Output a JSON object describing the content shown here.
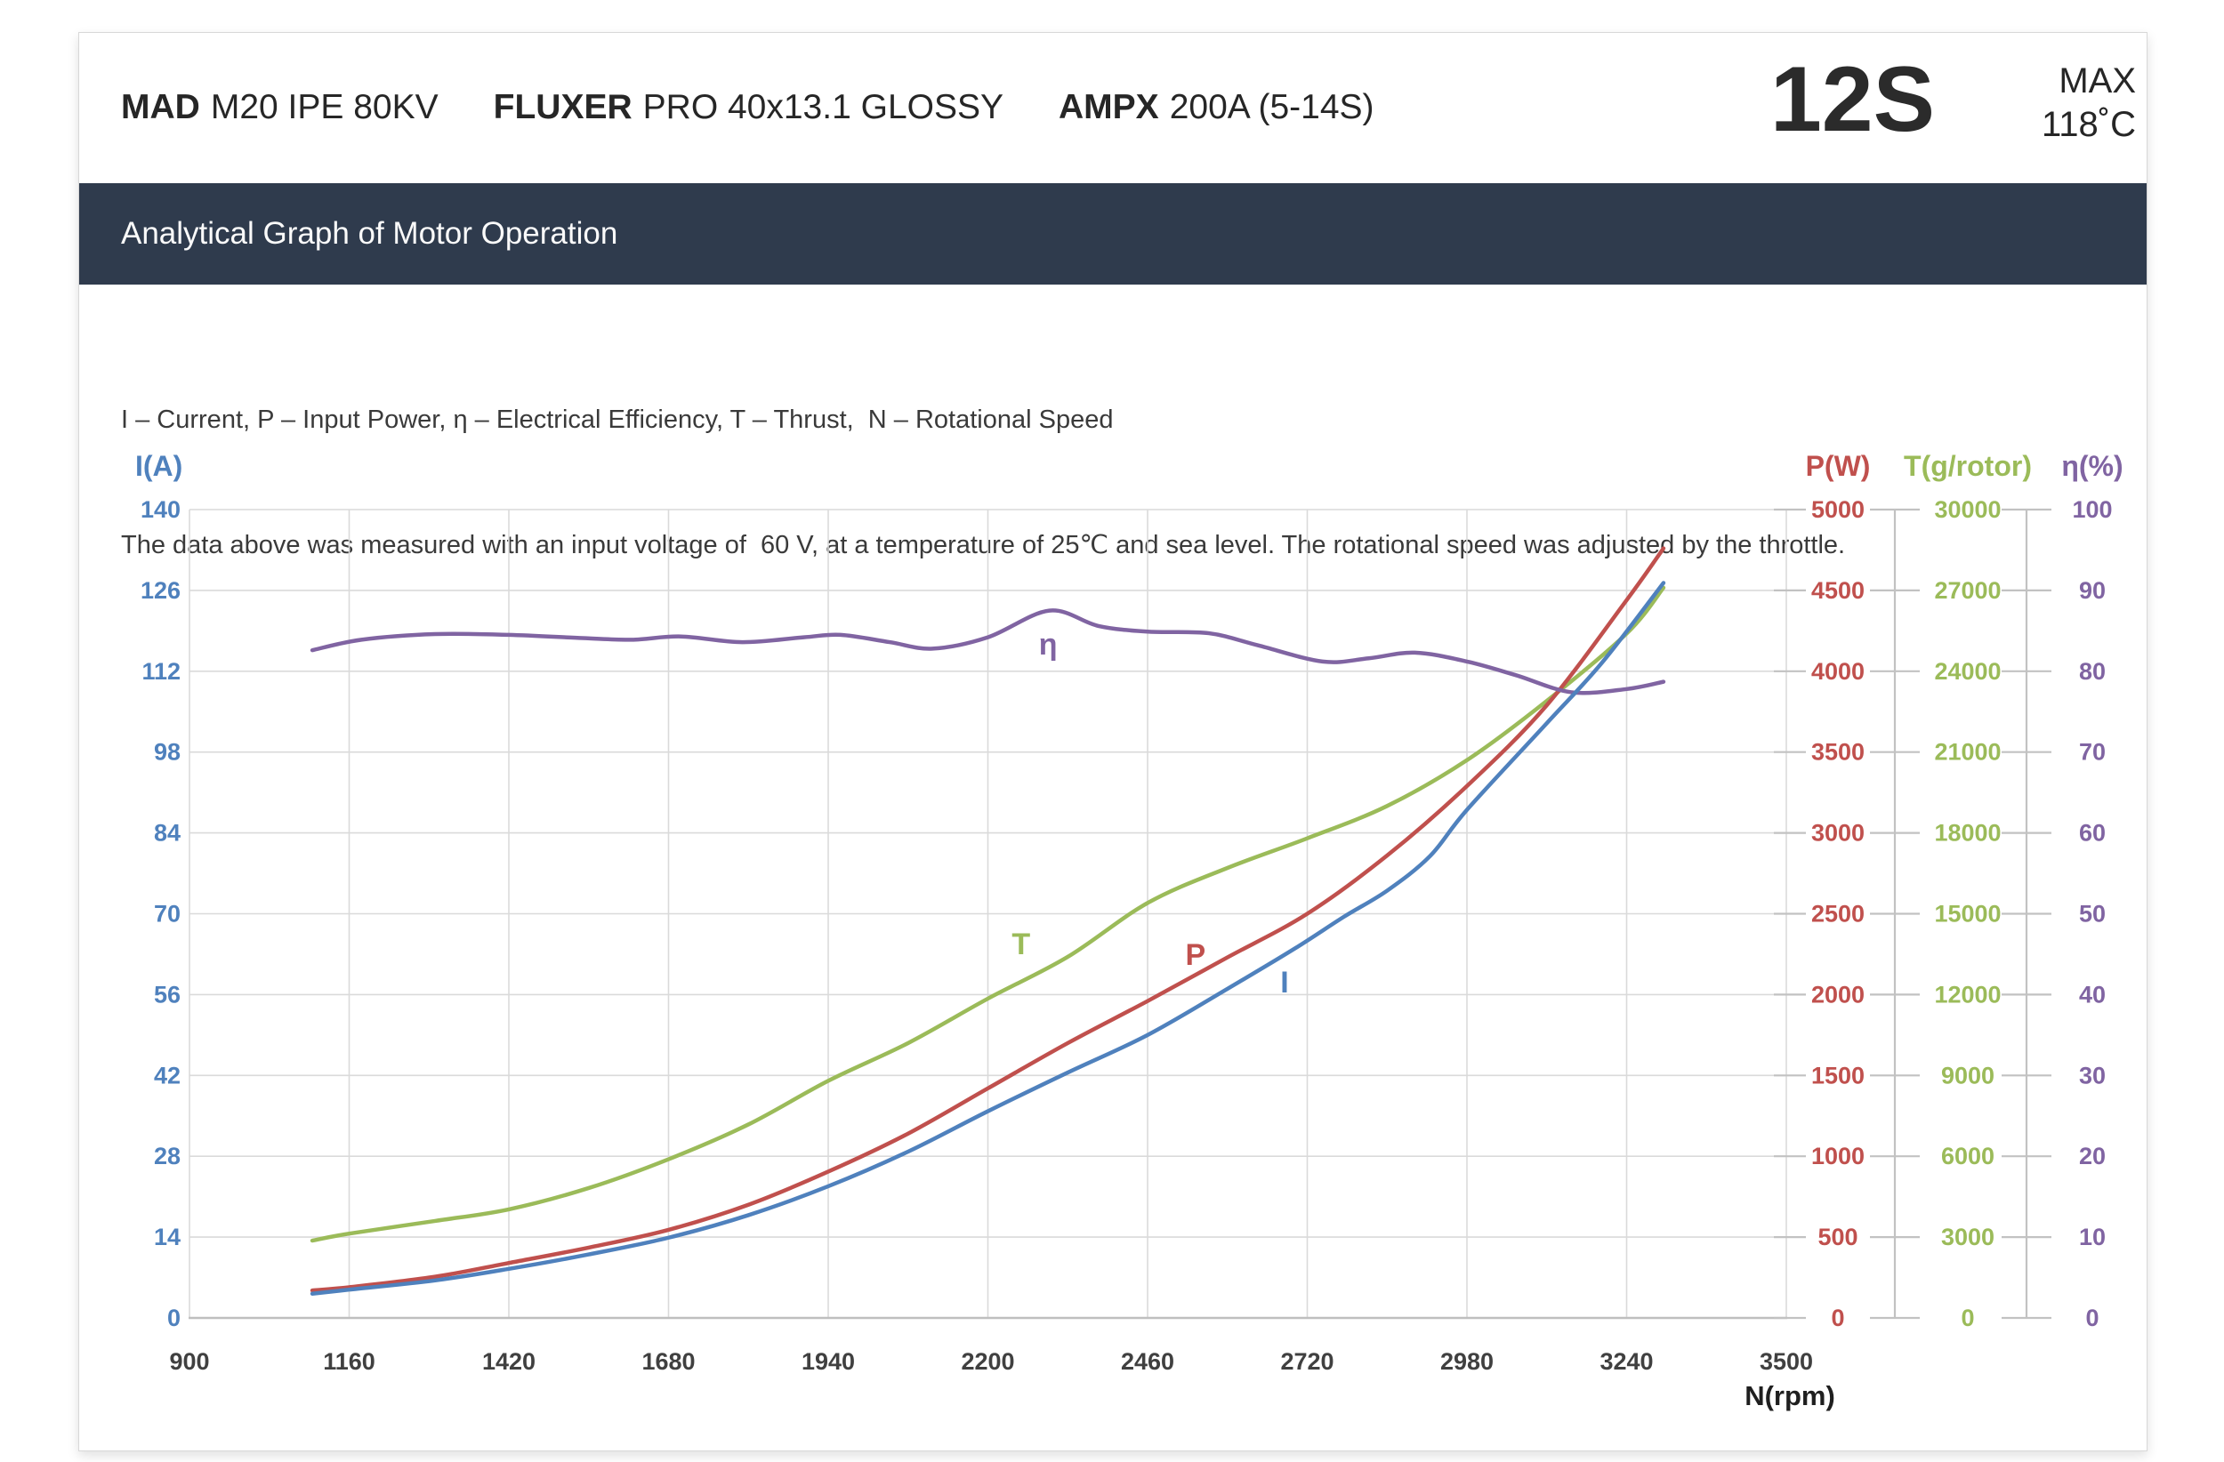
{
  "header": {
    "products": [
      {
        "brand": "MAD",
        "model": "M20 IPE 80KV"
      },
      {
        "brand": "FLUXER",
        "model": "PRO 40x13.1 GLOSSY"
      },
      {
        "brand": "AMPX",
        "model": "200A (5-14S)"
      }
    ],
    "battery": "12S",
    "max_label": "MAX",
    "max_temp": "118˚C"
  },
  "section_title": "Analytical Graph of Motor Operation",
  "description": {
    "line1": "I – Current, P – Input Power, η – Electrical Efficiency, T – Thrust,  N – Rotational Speed",
    "line2": "The data above was measured with an input voltage of  60 V, at a temperature of 25℃ and sea level. The rotational speed was adjusted by the throttle."
  },
  "colors": {
    "titlebar_bg": "#2F3B4D",
    "grid": "#DADADA",
    "axis_line": "#C2C2C2",
    "x_tick_text": "#404040"
  },
  "chart_data": {
    "type": "line",
    "title": "Analytical Graph of Motor Operation",
    "grid": true,
    "x_axis": {
      "label": "N(rpm)",
      "min": 900,
      "max": 3500,
      "ticks": [
        900,
        1160,
        1420,
        1680,
        1940,
        2200,
        2460,
        2720,
        2980,
        3240,
        3500
      ]
    },
    "y_axes": [
      {
        "id": "i",
        "title": "I(A)",
        "color": "#4F81BD",
        "min": 0,
        "max": 140,
        "ticks": [
          0,
          14,
          28,
          42,
          56,
          70,
          84,
          98,
          112,
          126,
          140
        ]
      },
      {
        "id": "p",
        "title": "P(W)",
        "color": "#C0504D",
        "min": 0,
        "max": 5000,
        "ticks": [
          0,
          500,
          1000,
          1500,
          2000,
          2500,
          3000,
          3500,
          4000,
          4500,
          5000
        ]
      },
      {
        "id": "t",
        "title": "T(g/rotor)",
        "color": "#9BBB59",
        "min": 0,
        "max": 30000,
        "ticks": [
          0,
          3000,
          6000,
          9000,
          12000,
          15000,
          18000,
          21000,
          24000,
          27000,
          30000
        ]
      },
      {
        "id": "eta",
        "title": "η(%)",
        "color": "#8064A2",
        "min": 0,
        "max": 100,
        "ticks": [
          0,
          10,
          20,
          30,
          40,
          50,
          60,
          70,
          80,
          90,
          100
        ]
      }
    ],
    "series": [
      {
        "id": "t",
        "name": "Thrust",
        "axis": "t",
        "color": "#9BBB59",
        "label": {
          "text": "T",
          "n": 2254,
          "v": 13900
        },
        "points": [
          [
            1100,
            2870
          ],
          [
            1160,
            3130
          ],
          [
            1300,
            3600
          ],
          [
            1420,
            4030
          ],
          [
            1550,
            4820
          ],
          [
            1680,
            5890
          ],
          [
            1810,
            7180
          ],
          [
            1940,
            8800
          ],
          [
            2070,
            10200
          ],
          [
            2200,
            11850
          ],
          [
            2330,
            13400
          ],
          [
            2460,
            15400
          ],
          [
            2590,
            16700
          ],
          [
            2720,
            17800
          ],
          [
            2850,
            19000
          ],
          [
            2980,
            20700
          ],
          [
            3110,
            22900
          ],
          [
            3240,
            25400
          ],
          [
            3300,
            27100
          ]
        ]
      },
      {
        "id": "p",
        "name": "Input Power",
        "axis": "p",
        "color": "#C0504D",
        "label": {
          "text": "P",
          "n": 2538,
          "v": 2250
        },
        "points": [
          [
            1100,
            170
          ],
          [
            1160,
            190
          ],
          [
            1300,
            255
          ],
          [
            1420,
            340
          ],
          [
            1550,
            435
          ],
          [
            1680,
            545
          ],
          [
            1810,
            700
          ],
          [
            1940,
            905
          ],
          [
            2070,
            1140
          ],
          [
            2200,
            1420
          ],
          [
            2330,
            1700
          ],
          [
            2460,
            1960
          ],
          [
            2590,
            2230
          ],
          [
            2720,
            2500
          ],
          [
            2850,
            2860
          ],
          [
            2980,
            3290
          ],
          [
            3110,
            3790
          ],
          [
            3240,
            4440
          ],
          [
            3300,
            4760
          ]
        ]
      },
      {
        "id": "eta",
        "name": "Electrical Efficiency",
        "axis": "eta",
        "color": "#8064A2",
        "label": {
          "text": "η",
          "n": 2298,
          "v": 83.4
        },
        "points": [
          [
            1100,
            82.6
          ],
          [
            1180,
            83.9
          ],
          [
            1300,
            84.6
          ],
          [
            1420,
            84.5
          ],
          [
            1540,
            84.1
          ],
          [
            1620,
            83.9
          ],
          [
            1700,
            84.3
          ],
          [
            1800,
            83.6
          ],
          [
            1900,
            84.2
          ],
          [
            1960,
            84.5
          ],
          [
            2040,
            83.6
          ],
          [
            2110,
            82.8
          ],
          [
            2200,
            84.2
          ],
          [
            2300,
            87.5
          ],
          [
            2380,
            85.6
          ],
          [
            2460,
            84.9
          ],
          [
            2560,
            84.7
          ],
          [
            2640,
            83.2
          ],
          [
            2745,
            81.2
          ],
          [
            2820,
            81.6
          ],
          [
            2895,
            82.3
          ],
          [
            2980,
            81.2
          ],
          [
            3060,
            79.5
          ],
          [
            3150,
            77.4
          ],
          [
            3240,
            77.8
          ],
          [
            3300,
            78.7
          ]
        ]
      },
      {
        "id": "i",
        "name": "Current",
        "axis": "i",
        "color": "#4F81BD",
        "label": {
          "text": "I",
          "n": 2683,
          "v": 58.2
        },
        "points": [
          [
            1100,
            4.2
          ],
          [
            1160,
            4.9
          ],
          [
            1300,
            6.5
          ],
          [
            1420,
            8.5
          ],
          [
            1550,
            11
          ],
          [
            1680,
            13.9
          ],
          [
            1810,
            17.8
          ],
          [
            1940,
            22.8
          ],
          [
            2070,
            28.8
          ],
          [
            2200,
            35.8
          ],
          [
            2330,
            42.5
          ],
          [
            2460,
            49
          ],
          [
            2590,
            57
          ],
          [
            2700,
            64
          ],
          [
            2780,
            69.5
          ],
          [
            2850,
            74
          ],
          [
            2920,
            80
          ],
          [
            2980,
            88
          ],
          [
            3110,
            103
          ],
          [
            3200,
            113.5
          ],
          [
            3300,
            127.3
          ]
        ]
      }
    ]
  }
}
